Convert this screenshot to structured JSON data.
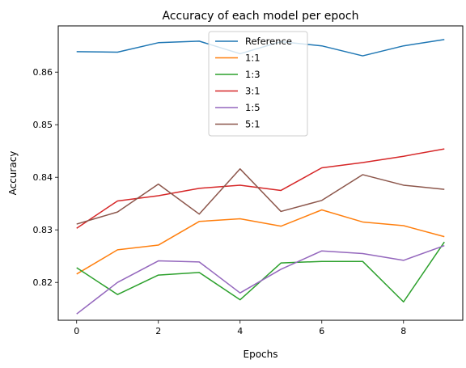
{
  "chart_data": {
    "type": "line",
    "title": "Accuracy of each model per epoch",
    "xlabel": "Epochs",
    "ylabel": "Accuracy",
    "xlim": [
      -0.45,
      9.45
    ],
    "ylim": [
      0.8128,
      0.8688
    ],
    "xticks": [
      0,
      2,
      4,
      6,
      8
    ],
    "yticks": [
      0.82,
      0.83,
      0.84,
      0.85,
      0.86
    ],
    "ytick_labels": [
      "0.82",
      "0.83",
      "0.84",
      "0.85",
      "0.86"
    ],
    "grid": false,
    "legend_position": "upper center",
    "x": [
      0,
      1,
      2,
      3,
      4,
      5,
      6,
      7,
      8,
      9
    ],
    "series": [
      {
        "name": "Reference",
        "color": "#1f77b4",
        "values": [
          0.8639,
          0.8638,
          0.8656,
          0.8659,
          0.8635,
          0.8658,
          0.865,
          0.8631,
          0.865,
          0.8662
        ]
      },
      {
        "name": "1:1",
        "color": "#ff7f0e",
        "values": [
          0.8216,
          0.8262,
          0.8271,
          0.8316,
          0.8321,
          0.8307,
          0.8338,
          0.8315,
          0.8308,
          0.8287
        ]
      },
      {
        "name": "1:3",
        "color": "#2ca02c",
        "values": [
          0.8228,
          0.8177,
          0.8214,
          0.8219,
          0.8167,
          0.8237,
          0.824,
          0.824,
          0.8163,
          0.8277
        ]
      },
      {
        "name": "3:1",
        "color": "#d62728",
        "values": [
          0.8303,
          0.8355,
          0.8365,
          0.8379,
          0.8385,
          0.8375,
          0.8418,
          0.8428,
          0.844,
          0.8454
        ]
      },
      {
        "name": "1:5",
        "color": "#9467bd",
        "values": [
          0.814,
          0.82,
          0.8241,
          0.8239,
          0.818,
          0.8225,
          0.826,
          0.8255,
          0.8242,
          0.827
        ]
      },
      {
        "name": "5:1",
        "color": "#8c564b",
        "values": [
          0.8311,
          0.8334,
          0.8387,
          0.833,
          0.8416,
          0.8335,
          0.8356,
          0.8405,
          0.8385,
          0.8377
        ]
      }
    ]
  }
}
